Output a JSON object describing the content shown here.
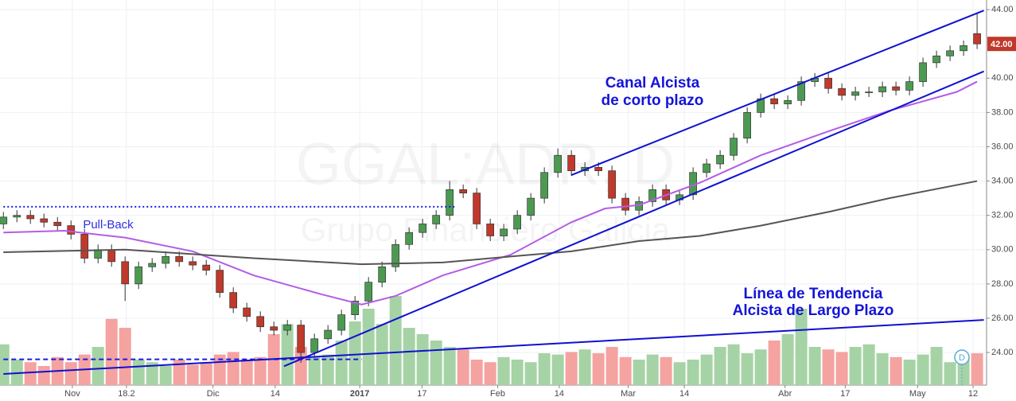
{
  "chart_data": {
    "type": "candlestick",
    "watermark": "GGAL:ADR, D",
    "watermark_subtitle": "Grupo Financiero Galicia",
    "x": [
      0,
      2,
      4,
      6,
      8,
      10,
      12,
      14,
      16,
      18,
      20,
      22,
      24,
      26,
      28,
      30,
      32,
      34,
      36,
      38,
      40,
      42,
      44,
      46,
      48,
      50,
      52,
      54,
      56,
      58,
      60,
      62,
      64,
      66,
      68,
      70,
      72,
      74,
      76,
      78,
      80,
      82,
      84,
      86,
      88,
      90,
      92,
      94,
      96,
      98,
      100,
      102,
      104,
      106,
      108,
      110,
      112,
      114,
      116,
      118,
      120,
      122,
      124,
      126,
      128,
      130,
      132,
      134,
      136,
      138,
      140,
      142,
      144
    ],
    "open": [
      31.5,
      31.9,
      32.0,
      31.8,
      31.6,
      31.4,
      30.9,
      29.5,
      30.0,
      29.3,
      28.0,
      29.0,
      29.2,
      29.6,
      29.3,
      29.1,
      28.8,
      27.5,
      26.6,
      26.1,
      25.5,
      25.3,
      25.6,
      24.0,
      24.8,
      25.3,
      26.2,
      27.0,
      28.1,
      29.0,
      30.3,
      31.0,
      31.5,
      32.0,
      33.5,
      33.3,
      31.5,
      30.8,
      31.2,
      32.0,
      33.0,
      34.5,
      35.5,
      34.6,
      34.8,
      34.6,
      33.0,
      32.3,
      32.8,
      33.5,
      32.9,
      33.2,
      34.5,
      35.0,
      35.5,
      36.5,
      38.0,
      38.8,
      38.5,
      38.7,
      39.8,
      40.0,
      39.4,
      39.0,
      39.2,
      39.2,
      39.5,
      39.3,
      39.8,
      40.9,
      41.3,
      41.6,
      42.6
    ],
    "high": [
      32.2,
      32.3,
      32.3,
      32.1,
      31.9,
      31.7,
      31.2,
      30.3,
      30.3,
      29.6,
      29.3,
      29.5,
      29.9,
      29.9,
      29.6,
      29.4,
      29.1,
      27.8,
      26.9,
      26.4,
      25.8,
      25.9,
      25.9,
      25.1,
      25.6,
      26.5,
      27.3,
      28.4,
      29.3,
      30.6,
      31.3,
      31.8,
      32.3,
      34.0,
      33.8,
      33.6,
      31.8,
      31.5,
      32.3,
      33.3,
      34.8,
      35.9,
      35.8,
      35.1,
      35.1,
      34.9,
      33.3,
      33.1,
      33.8,
      33.8,
      33.5,
      34.8,
      35.3,
      35.8,
      36.8,
      38.3,
      39.1,
      39.1,
      39.0,
      40.1,
      40.3,
      40.3,
      39.7,
      39.5,
      39.5,
      39.8,
      39.8,
      40.1,
      41.2,
      41.6,
      41.9,
      42.2,
      43.8
    ],
    "low": [
      31.2,
      31.6,
      31.5,
      31.3,
      31.1,
      30.6,
      29.2,
      29.2,
      29.0,
      27.0,
      27.7,
      28.7,
      28.9,
      29.0,
      28.8,
      28.5,
      27.2,
      26.3,
      25.8,
      25.2,
      25.0,
      25.0,
      23.4,
      23.7,
      24.5,
      25.0,
      25.9,
      26.7,
      27.8,
      28.7,
      30.0,
      30.7,
      31.2,
      31.7,
      33.0,
      31.2,
      30.5,
      30.5,
      30.9,
      31.7,
      32.7,
      34.2,
      34.3,
      34.3,
      34.3,
      32.7,
      32.0,
      32.0,
      32.5,
      32.6,
      32.6,
      32.9,
      34.2,
      34.7,
      35.2,
      36.2,
      37.7,
      38.2,
      38.2,
      38.4,
      39.5,
      39.1,
      38.7,
      38.7,
      38.9,
      38.9,
      39.0,
      39.0,
      39.5,
      40.6,
      41.0,
      41.3,
      41.7
    ],
    "close": [
      31.9,
      32.0,
      31.8,
      31.6,
      31.4,
      30.9,
      29.5,
      30.0,
      29.3,
      28.0,
      29.0,
      29.2,
      29.6,
      29.3,
      29.1,
      28.8,
      27.5,
      26.6,
      26.1,
      25.5,
      25.3,
      25.6,
      24.0,
      24.8,
      25.3,
      26.2,
      27.0,
      28.1,
      29.0,
      30.3,
      31.0,
      31.5,
      32.0,
      33.5,
      33.3,
      31.5,
      30.8,
      31.2,
      32.0,
      33.0,
      34.5,
      35.5,
      34.6,
      34.8,
      34.6,
      33.0,
      32.3,
      32.8,
      33.5,
      32.9,
      33.2,
      34.5,
      35.0,
      35.5,
      36.5,
      38.0,
      38.8,
      38.5,
      38.7,
      39.8,
      40.0,
      39.4,
      39.0,
      39.2,
      39.2,
      39.5,
      39.3,
      39.8,
      40.9,
      41.3,
      41.6,
      41.9,
      42.0
    ],
    "volume": [
      32,
      20,
      18,
      15,
      22,
      18,
      24,
      30,
      52,
      45,
      20,
      18,
      15,
      20,
      16,
      18,
      24,
      26,
      20,
      22,
      40,
      48,
      30,
      22,
      24,
      35,
      50,
      60,
      48,
      70,
      45,
      40,
      35,
      30,
      28,
      20,
      18,
      22,
      20,
      18,
      25,
      24,
      26,
      28,
      25,
      30,
      22,
      20,
      24,
      22,
      18,
      20,
      24,
      30,
      32,
      25,
      28,
      35,
      40,
      60,
      30,
      28,
      26,
      30,
      32,
      25,
      22,
      20,
      24,
      30,
      18,
      22,
      25
    ],
    "vlim": [
      0,
      100
    ],
    "up_color": "#4c9a52",
    "down_color": "#c0392b",
    "up_volume_color": "#a6d3a5",
    "down_volume_color": "#f4a3a0",
    "xlim": [
      -0.5,
      145.4
    ],
    "ylim": [
      22.1,
      44.56
    ],
    "xticks": [
      {
        "value": 10.2,
        "label": "Nov"
      },
      18.2,
      {
        "value": 31,
        "label": "Dic"
      },
      {
        "value": 40.2,
        "label": "14"
      },
      {
        "value": 52.7,
        "label": "2017"
      },
      {
        "value": 61.9,
        "label": "17"
      },
      {
        "value": 73.1,
        "label": "Feb"
      },
      {
        "value": 82.2,
        "label": "14"
      },
      {
        "value": 92.4,
        "label": "Mar"
      },
      {
        "value": 100.7,
        "label": "14"
      },
      {
        "value": 115.6,
        "label": "Abr"
      },
      {
        "value": 124.5,
        "label": "17"
      },
      {
        "value": 135.2,
        "label": "May"
      },
      {
        "value": 143.4,
        "label": "12"
      }
    ],
    "yticks": [
      {
        "value": 24,
        "label": "24.00"
      },
      {
        "value": 26,
        "label": "26.00"
      },
      {
        "value": 28,
        "label": "28.00"
      },
      {
        "value": 30,
        "label": "30.00"
      },
      {
        "value": 32,
        "label": "32.00"
      },
      {
        "value": 34,
        "label": "34.00"
      },
      {
        "value": 36,
        "label": "36.00"
      },
      {
        "value": 38,
        "label": "38.00"
      },
      {
        "value": 40,
        "label": "40.00"
      },
      {
        "value": 44,
        "label": "44.00"
      }
    ],
    "grid": true,
    "last_price": {
      "value": 42,
      "label": "42.00"
    },
    "moving_averages": [
      {
        "color": "#b45ce6",
        "x": [
          0,
          9,
          18,
          28,
          37,
          47,
          53,
          58,
          65,
          75,
          84,
          89,
          94,
          103,
          112,
          122,
          131,
          141,
          144
        ],
        "values": [
          31.0,
          31.1,
          30.7,
          29.9,
          28.5,
          27.4,
          26.8,
          27.3,
          28.5,
          29.7,
          31.6,
          32.4,
          32.6,
          33.9,
          35.5,
          36.9,
          38.1,
          39.2,
          39.8
        ]
      },
      {
        "color": "#555555",
        "x": [
          0,
          18,
          37,
          53,
          65,
          75,
          84,
          94,
          103,
          112,
          122,
          131,
          144
        ],
        "values": [
          29.85,
          30.0,
          29.5,
          29.15,
          29.25,
          29.6,
          29.9,
          30.5,
          30.8,
          31.4,
          32.2,
          33.0,
          34.0
        ]
      }
    ],
    "trendlines": [
      {
        "color": "#1010d0",
        "x": [
          0,
          145
        ],
        "values": [
          22.75,
          25.9
        ]
      },
      {
        "color": "#1010d0",
        "x": [
          41.5,
          145
        ],
        "values": [
          23.2,
          40.4
        ]
      },
      {
        "color": "#1010d0",
        "x": [
          84,
          145
        ],
        "values": [
          34.35,
          43.95
        ]
      }
    ],
    "reference_lines": [
      {
        "color": "#1a1ae0",
        "style": "dotted",
        "x": [
          0,
          67
        ],
        "values": [
          32.5,
          32.5
        ]
      },
      {
        "color": "#1a1ae0",
        "style": "dashed",
        "x": [
          0,
          53
        ],
        "values": [
          23.6,
          23.6
        ]
      }
    ],
    "annotations": [
      {
        "text": [
          "Canal Alcista",
          "de corto plazo"
        ]
      },
      {
        "text": [
          "Línea de Tendencia",
          "Alcista de Largo Plazo"
        ]
      },
      {
        "text": [
          "Pull-Back"
        ]
      }
    ],
    "event_marker": "D"
  }
}
